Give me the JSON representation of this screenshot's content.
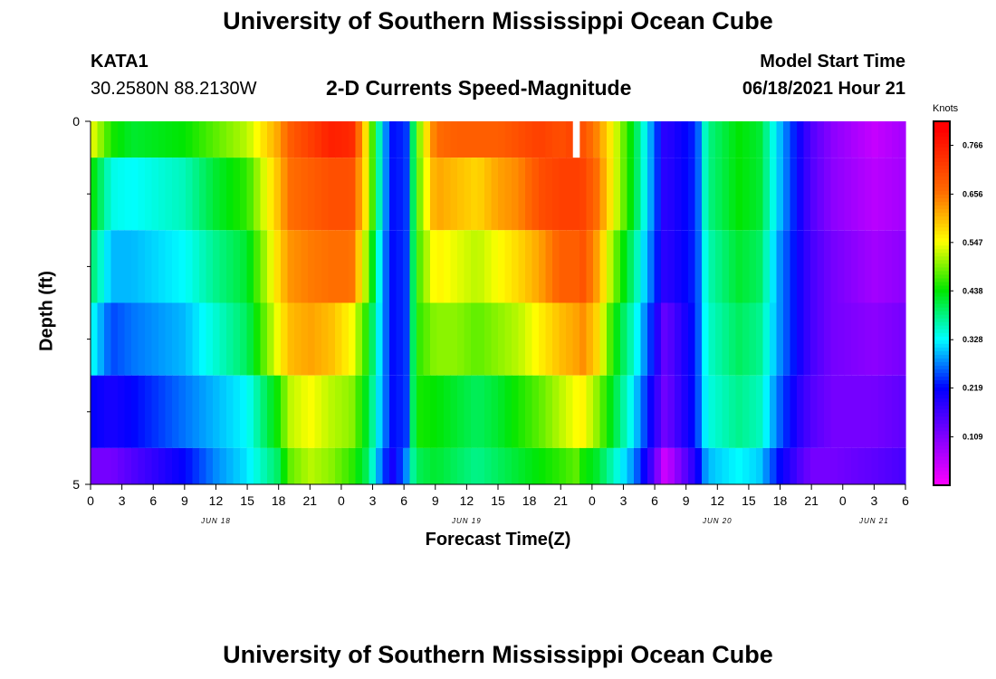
{
  "page": {
    "title_top": "University of Southern Mississippi Ocean Cube",
    "title_bottom": "University of Southern Mississippi Ocean Cube",
    "station_id": "KATA1",
    "station_coords": "30.2580N  88.2130W",
    "subtitle": "2-D Currents Speed-Magnitude",
    "model_start_label": "Model Start Time",
    "model_start_value": "06/18/2021 Hour 21"
  },
  "chart_data": {
    "type": "heatmap",
    "title": "2-D Currents Speed-Magnitude",
    "xlabel": "Forecast Time(Z)",
    "ylabel": "Depth (ft)",
    "ylim": [
      0,
      5
    ],
    "y_tick_labels": [
      "0",
      "5"
    ],
    "y_minor_ticks": [
      1,
      2,
      3,
      4
    ],
    "x_hours": [
      0,
      78
    ],
    "x_tick_labels": [
      "0",
      "3",
      "6",
      "9",
      "12",
      "15",
      "18",
      "21",
      "0",
      "3",
      "6",
      "9",
      "12",
      "15",
      "18",
      "21",
      "0",
      "3",
      "6",
      "9",
      "12",
      "15",
      "18",
      "21",
      "0",
      "3",
      "6"
    ],
    "date_labels": [
      {
        "text": "JUN 18",
        "hour": 12
      },
      {
        "text": "JUN 19",
        "hour": 36
      },
      {
        "text": "JUN 20",
        "hour": 60
      },
      {
        "text": "JUN 21",
        "hour": 75
      }
    ],
    "colorbar": {
      "units": "Knots",
      "range": [
        0.0,
        0.82
      ],
      "tick_labels": [
        "0.766",
        "0.656",
        "0.547",
        "0.438",
        "0.328",
        "0.219",
        "0.109"
      ],
      "tick_values": [
        0.766,
        0.656,
        0.547,
        0.438,
        0.328,
        0.219,
        0.109
      ]
    },
    "depth_layers": [
      "0-0.5 ft",
      "0.5-1.5 ft",
      "1.5-2.5 ft",
      "2.5-3.5 ft",
      "3.5-4.5 ft",
      "4.5-5 ft"
    ],
    "keyframes": {
      "hours": [
        0,
        2,
        4,
        9,
        12,
        15,
        18,
        19,
        21,
        23,
        25,
        26.5,
        28,
        29,
        30.5,
        31,
        33,
        35,
        37,
        39,
        41,
        43,
        45,
        46.5,
        47,
        48.5,
        50,
        52,
        53.5,
        55,
        58,
        59,
        62,
        64,
        66,
        68,
        69,
        71,
        75,
        78
      ],
      "layers": [
        [
          0.55,
          0.45,
          0.42,
          0.44,
          0.48,
          0.52,
          0.62,
          0.68,
          0.72,
          0.76,
          0.75,
          0.55,
          0.3,
          0.22,
          0.25,
          0.45,
          0.66,
          0.68,
          0.68,
          0.68,
          0.7,
          0.72,
          0.7,
          0.72,
          0.7,
          0.64,
          0.55,
          0.42,
          0.3,
          0.18,
          0.24,
          0.38,
          0.44,
          0.42,
          0.3,
          0.2,
          0.15,
          0.1,
          0.05,
          0.08
        ],
        [
          0.45,
          0.34,
          0.33,
          0.36,
          0.42,
          0.46,
          0.6,
          0.66,
          0.68,
          0.7,
          0.7,
          0.55,
          0.3,
          0.22,
          0.25,
          0.45,
          0.62,
          0.6,
          0.58,
          0.62,
          0.64,
          0.7,
          0.72,
          0.72,
          0.72,
          0.66,
          0.55,
          0.42,
          0.3,
          0.18,
          0.24,
          0.38,
          0.44,
          0.42,
          0.3,
          0.2,
          0.15,
          0.1,
          0.06,
          0.08
        ],
        [
          0.4,
          0.3,
          0.3,
          0.33,
          0.38,
          0.42,
          0.58,
          0.63,
          0.65,
          0.66,
          0.66,
          0.5,
          0.28,
          0.22,
          0.25,
          0.45,
          0.56,
          0.54,
          0.52,
          0.55,
          0.58,
          0.62,
          0.68,
          0.68,
          0.7,
          0.62,
          0.5,
          0.38,
          0.28,
          0.18,
          0.24,
          0.36,
          0.42,
          0.4,
          0.28,
          0.2,
          0.16,
          0.12,
          0.08,
          0.1
        ],
        [
          0.34,
          0.25,
          0.27,
          0.3,
          0.35,
          0.4,
          0.55,
          0.6,
          0.62,
          0.6,
          0.55,
          0.45,
          0.28,
          0.22,
          0.25,
          0.45,
          0.5,
          0.5,
          0.48,
          0.5,
          0.52,
          0.56,
          0.6,
          0.62,
          0.64,
          0.58,
          0.45,
          0.35,
          0.25,
          0.13,
          0.24,
          0.35,
          0.4,
          0.38,
          0.28,
          0.2,
          0.16,
          0.12,
          0.1,
          0.12
        ],
        [
          0.22,
          0.2,
          0.22,
          0.27,
          0.3,
          0.33,
          0.45,
          0.52,
          0.55,
          0.52,
          0.5,
          0.42,
          0.28,
          0.22,
          0.25,
          0.45,
          0.44,
          0.42,
          0.4,
          0.42,
          0.45,
          0.48,
          0.52,
          0.55,
          0.56,
          0.5,
          0.42,
          0.32,
          0.22,
          0.12,
          0.24,
          0.34,
          0.38,
          0.36,
          0.26,
          0.18,
          0.15,
          0.12,
          0.12,
          0.14
        ],
        [
          0.12,
          0.12,
          0.15,
          0.22,
          0.28,
          0.32,
          0.4,
          0.48,
          0.52,
          0.5,
          0.46,
          0.4,
          0.25,
          0.2,
          0.3,
          0.4,
          0.42,
          0.4,
          0.38,
          0.4,
          0.42,
          0.44,
          0.46,
          0.48,
          0.45,
          0.42,
          0.36,
          0.28,
          0.18,
          0.04,
          0.2,
          0.3,
          0.33,
          0.31,
          0.22,
          0.15,
          0.12,
          0.12,
          0.14,
          0.16
        ]
      ]
    },
    "missing_cell": {
      "layer": 0,
      "hour": 46.5
    }
  }
}
